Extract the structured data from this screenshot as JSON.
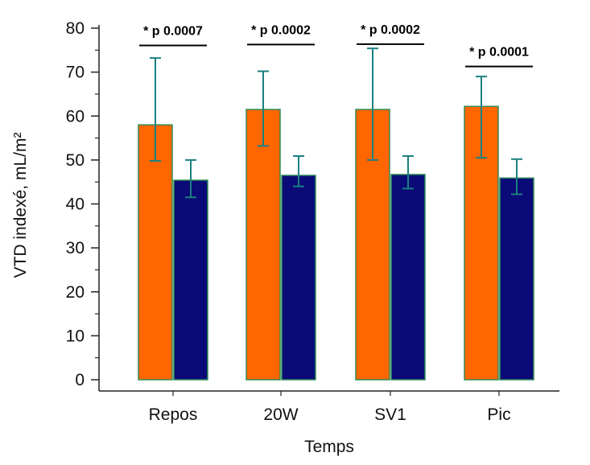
{
  "chart_data": {
    "type": "bar",
    "title": "",
    "xlabel": "Temps",
    "ylabel": "VTD indexé, mL/m²",
    "ylim": [
      0,
      80
    ],
    "yticks": [
      0,
      10,
      20,
      30,
      40,
      50,
      60,
      70,
      80
    ],
    "categories": [
      "Repos",
      "20W",
      "SV1",
      "Pic"
    ],
    "series": [
      {
        "color": "#FF6600",
        "values": [
          58,
          61.5,
          61.5,
          62.2
        ],
        "error_low": [
          49.8,
          53.2,
          50,
          50.5
        ],
        "error_high": [
          73.2,
          70.2,
          75.4,
          69
        ]
      },
      {
        "color": "#0A0A78",
        "values": [
          45.4,
          46.5,
          46.7,
          45.9
        ],
        "error_low": [
          41.5,
          44,
          43.5,
          42.2
        ],
        "error_high": [
          50,
          50.9,
          50.9,
          50.2
        ]
      }
    ],
    "annotations": [
      "* p 0.0007",
      "* p 0.0002",
      "* p 0.0002",
      "* p 0.0001"
    ],
    "annotation_levels": [
      79,
      79.2,
      79.3,
      74.2
    ],
    "bar_edge_color": "#2E8B57",
    "error_bar_color": "#1A8080",
    "grid": false,
    "legend": "none"
  }
}
